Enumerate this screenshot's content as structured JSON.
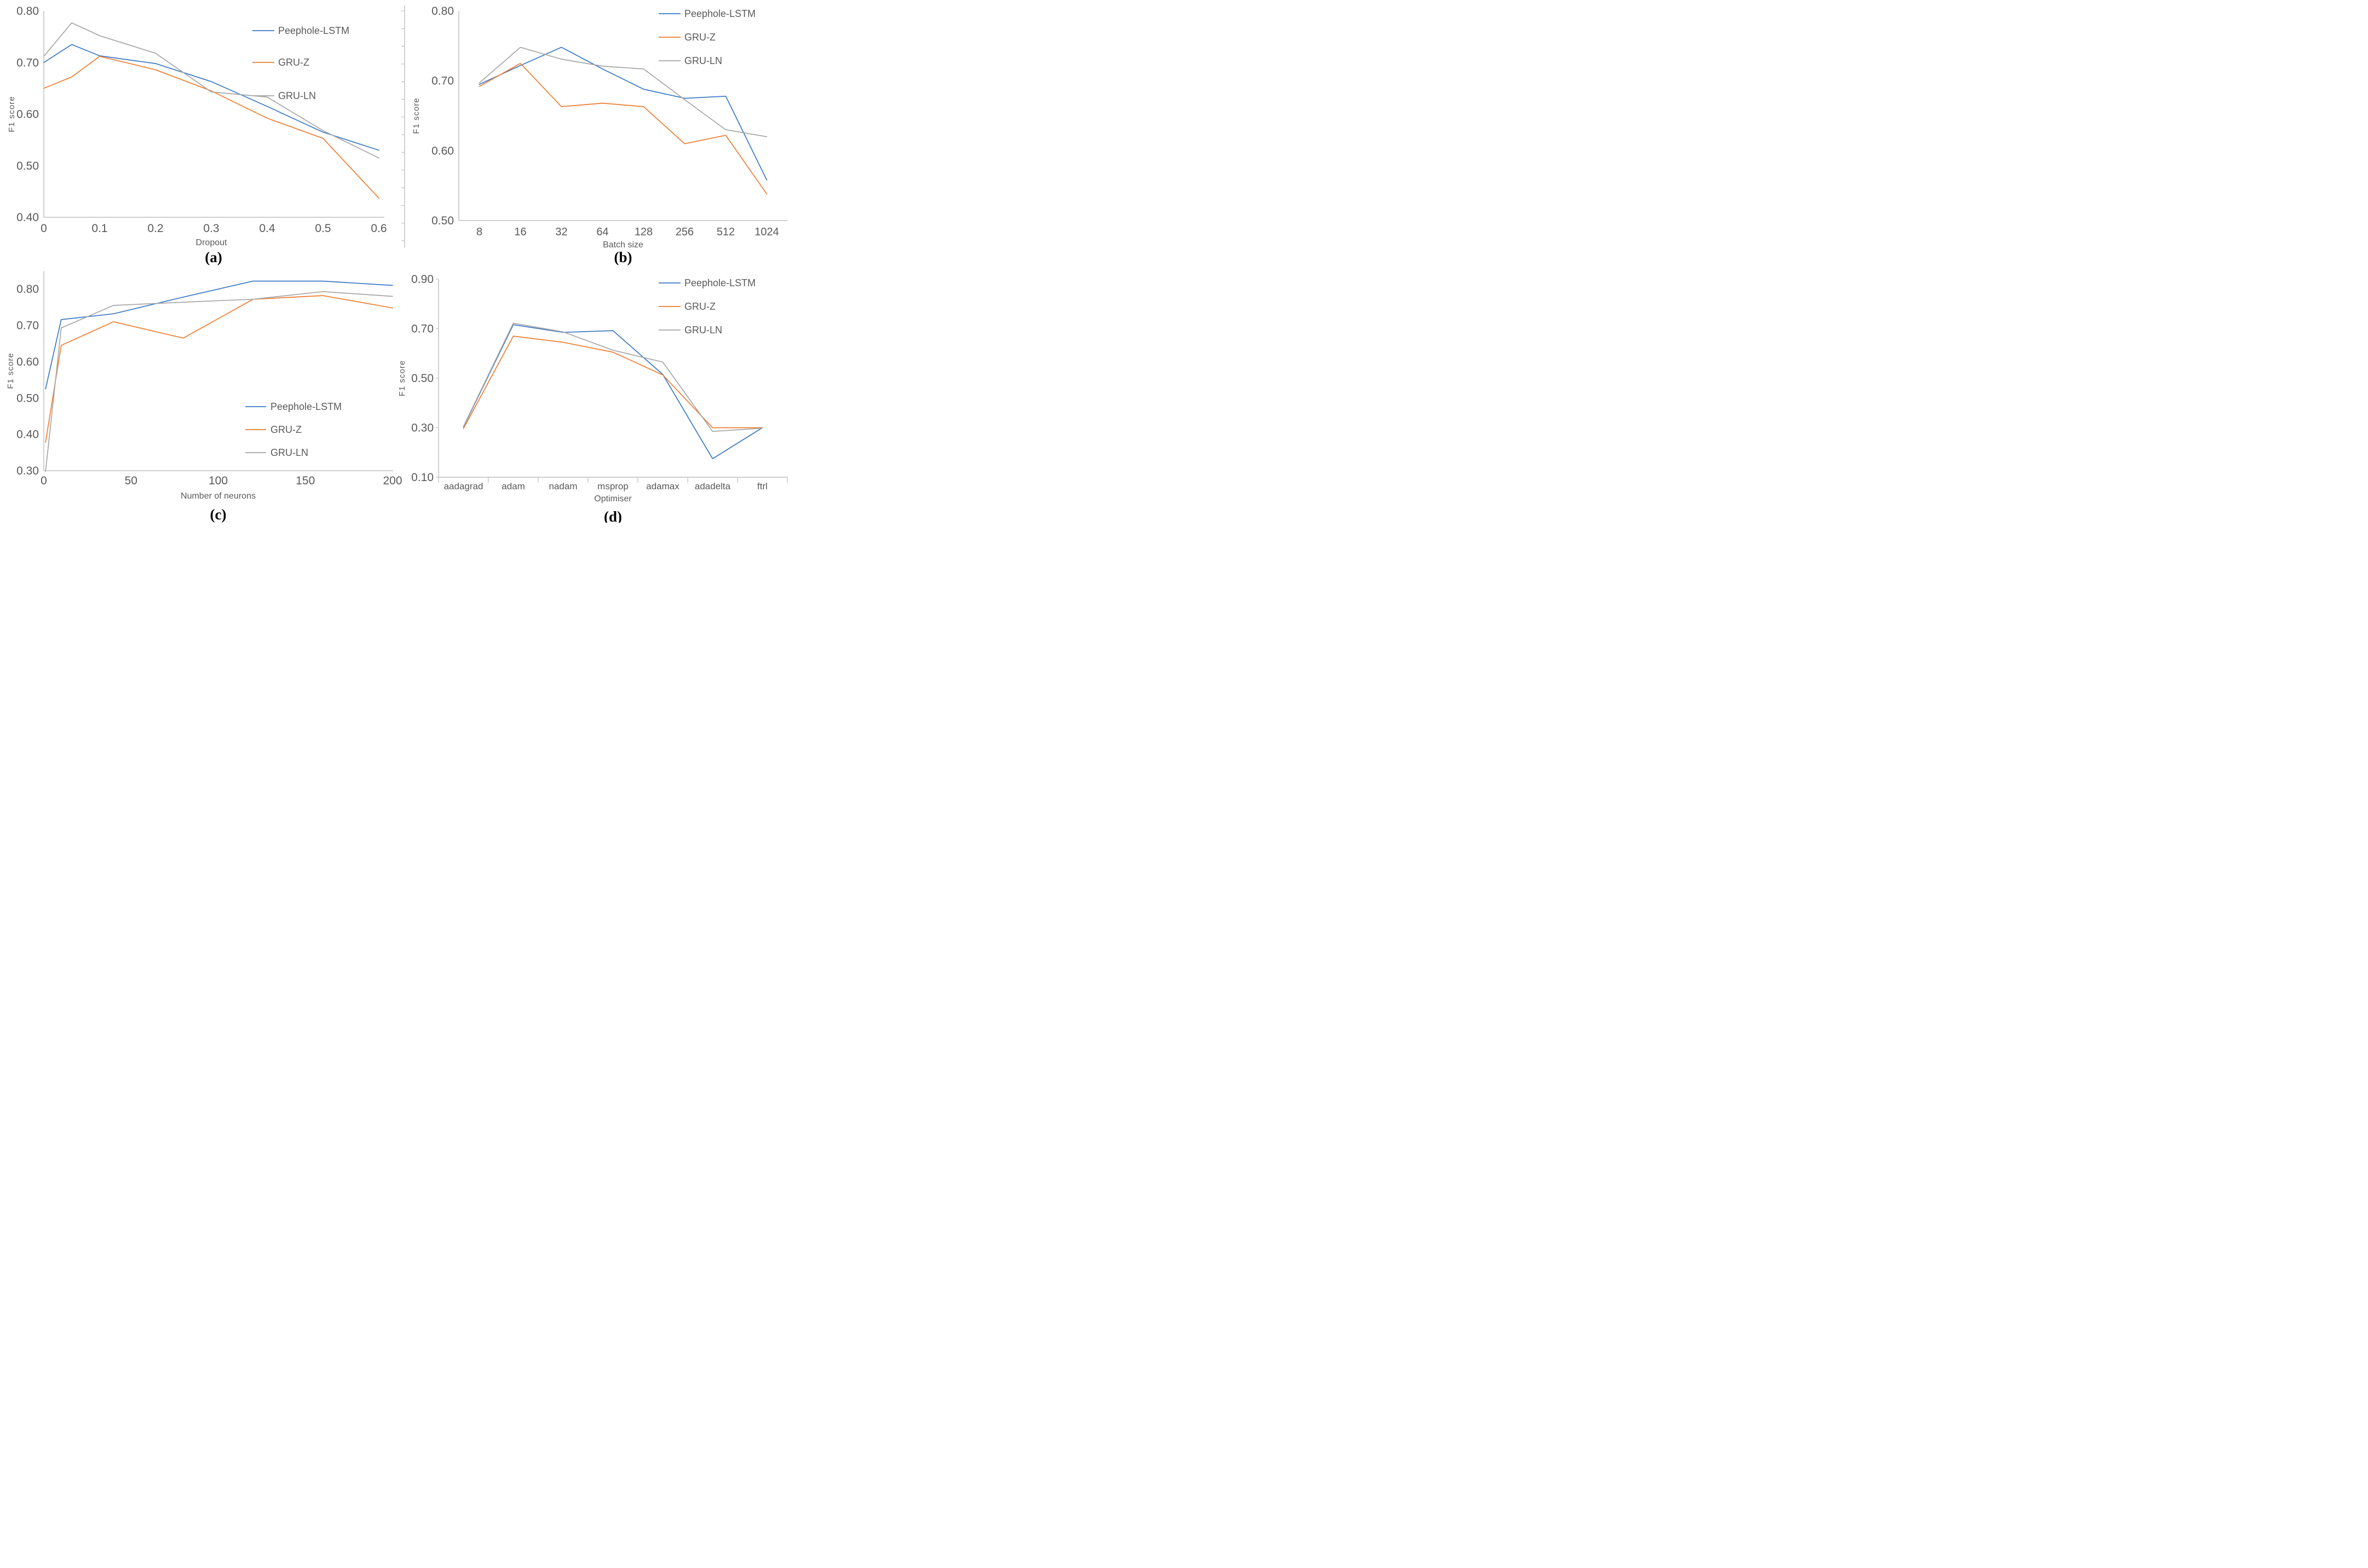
{
  "figure": {
    "background": "#ffffff",
    "text_color": "#595959",
    "axis_color": "#BFBFBF",
    "letter_color": "#000000"
  },
  "chart_data": [
    {
      "id": "a",
      "type": "line",
      "letter": "(a)",
      "xlabel": "Dropout",
      "ylabel": "F1 score",
      "x_type": "numeric",
      "xlim": [
        0,
        0.6
      ],
      "ylim": [
        0.4,
        0.8
      ],
      "grid": false,
      "legend_position": "top-right-inside",
      "x_ticks": [
        {
          "v": 0,
          "label": "0"
        },
        {
          "v": 0.1,
          "label": "0.1"
        },
        {
          "v": 0.2,
          "label": "0.2"
        },
        {
          "v": 0.3,
          "label": "0.3"
        },
        {
          "v": 0.4,
          "label": "0.4"
        },
        {
          "v": 0.5,
          "label": "0.5"
        },
        {
          "v": 0.6,
          "label": "0.6"
        }
      ],
      "y_ticks": [
        {
          "v": 0.4,
          "label": "0.40"
        },
        {
          "v": 0.5,
          "label": "0.50"
        },
        {
          "v": 0.6,
          "label": "0.60"
        },
        {
          "v": 0.7,
          "label": "0.70"
        },
        {
          "v": 0.8,
          "label": "0.80"
        }
      ],
      "x": [
        0,
        0.05,
        0.1,
        0.2,
        0.3,
        0.4,
        0.5,
        0.6
      ],
      "series": [
        {
          "name": "Peephole-LSTM",
          "color": "#3B78C4",
          "values": [
            0.7,
            0.735,
            0.713,
            0.698,
            0.663,
            0.615,
            0.565,
            0.53
          ]
        },
        {
          "name": "GRU-Z",
          "color": "#ED7D31",
          "values": [
            0.65,
            0.672,
            0.712,
            0.686,
            0.645,
            0.592,
            0.553,
            0.437
          ]
        },
        {
          "name": "GRU-LN",
          "color": "#A6A6A6",
          "values": [
            0.712,
            0.777,
            0.752,
            0.718,
            0.643,
            0.633,
            0.568,
            0.515
          ]
        }
      ]
    },
    {
      "id": "b",
      "type": "line",
      "letter": "(b)",
      "xlabel": "Batch size",
      "ylabel": "F1 score",
      "x_type": "category",
      "categories": [
        "8",
        "16",
        "32",
        "64",
        "128",
        "256",
        "512",
        "1024"
      ],
      "ylim": [
        0.5,
        0.8
      ],
      "grid": false,
      "legend_position": "top-right-inside",
      "y_ticks": [
        {
          "v": 0.5,
          "label": "0.50"
        },
        {
          "v": 0.6,
          "label": "0.60"
        },
        {
          "v": 0.7,
          "label": "0.70"
        },
        {
          "v": 0.8,
          "label": "0.80"
        }
      ],
      "series": [
        {
          "name": "Peephole-LSTM",
          "color": "#3B78C4",
          "values": [
            0.695,
            0.722,
            0.748,
            0.717,
            0.688,
            0.675,
            0.678,
            0.558
          ]
        },
        {
          "name": "GRU-Z",
          "color": "#ED7D31",
          "values": [
            0.692,
            0.725,
            0.663,
            0.668,
            0.663,
            0.61,
            0.622,
            0.538
          ]
        },
        {
          "name": "GRU-LN",
          "color": "#A6A6A6",
          "values": [
            0.697,
            0.748,
            0.731,
            0.721,
            0.717,
            0.673,
            0.63,
            0.62
          ]
        }
      ]
    },
    {
      "id": "c",
      "type": "line",
      "letter": "(c)",
      "xlabel": "Number of neurons",
      "ylabel": "F1 score",
      "x_type": "numeric",
      "xlim": [
        0,
        200
      ],
      "ylim": [
        0.3,
        0.85
      ],
      "grid": false,
      "legend_position": "middle-right-inside",
      "x_ticks": [
        {
          "v": 0,
          "label": "0"
        },
        {
          "v": 50,
          "label": "50"
        },
        {
          "v": 100,
          "label": "100"
        },
        {
          "v": 150,
          "label": "150"
        },
        {
          "v": 200,
          "label": "200"
        }
      ],
      "y_ticks": [
        {
          "v": 0.3,
          "label": "0.30"
        },
        {
          "v": 0.4,
          "label": "0.40"
        },
        {
          "v": 0.5,
          "label": "0.50"
        },
        {
          "v": 0.6,
          "label": "0.60"
        },
        {
          "v": 0.7,
          "label": "0.70"
        },
        {
          "v": 0.8,
          "label": "0.80"
        }
      ],
      "x": [
        1,
        10,
        40,
        80,
        120,
        160,
        200
      ],
      "series": [
        {
          "name": "Peephole-LSTM",
          "color": "#3B78C4",
          "values": [
            0.525,
            0.716,
            0.732,
            0.778,
            0.822,
            0.822,
            0.81
          ]
        },
        {
          "name": "GRU-Z",
          "color": "#ED7D31",
          "values": [
            0.378,
            0.645,
            0.71,
            0.665,
            0.772,
            0.782,
            0.748
          ]
        },
        {
          "name": "GRU-LN",
          "color": "#A6A6A6",
          "values": [
            0.298,
            0.693,
            0.755,
            0.764,
            0.772,
            0.793,
            0.78
          ]
        }
      ]
    },
    {
      "id": "d",
      "type": "line",
      "letter": "(d)",
      "xlabel": "Optimiser",
      "ylabel": "F1 score",
      "x_type": "category",
      "categories": [
        "aadagrad",
        "adam",
        "nadam",
        "msprop",
        "adamax",
        "adadelta",
        "ftrl"
      ],
      "ylim": [
        0.1,
        0.9
      ],
      "grid": false,
      "legend_position": "top-right-inside",
      "y_ticks": [
        {
          "v": 0.1,
          "label": "0.10"
        },
        {
          "v": 0.3,
          "label": "0.30"
        },
        {
          "v": 0.5,
          "label": "0.50"
        },
        {
          "v": 0.7,
          "label": "0.70"
        },
        {
          "v": 0.9,
          "label": "0.90"
        }
      ],
      "series": [
        {
          "name": "Peephole-LSTM",
          "color": "#3B78C4",
          "values": [
            0.303,
            0.716,
            0.685,
            0.692,
            0.515,
            0.175,
            0.3
          ]
        },
        {
          "name": "GRU-Z",
          "color": "#ED7D31",
          "values": [
            0.297,
            0.67,
            0.645,
            0.605,
            0.513,
            0.3,
            0.3
          ]
        },
        {
          "name": "GRU-LN",
          "color": "#A6A6A6",
          "values": [
            0.305,
            0.722,
            0.687,
            0.613,
            0.565,
            0.285,
            0.298
          ]
        }
      ]
    }
  ]
}
